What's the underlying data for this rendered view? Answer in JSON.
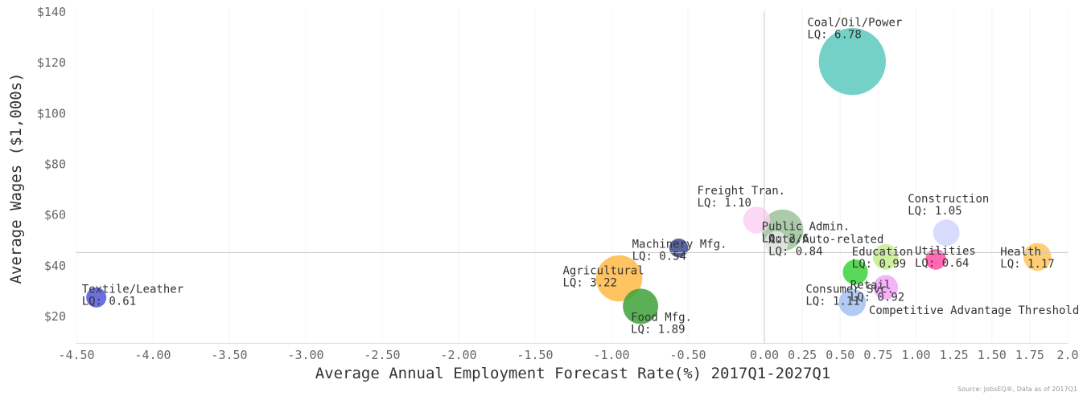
{
  "chart_data": {
    "type": "scatter",
    "xlabel": "Average Annual Employment Forecast Rate(%) 2017Q1-2027Q1",
    "ylabel": "Average Wages ($1,000s)",
    "xlim": [
      -4.5,
      2.0
    ],
    "ylim": [
      10,
      140
    ],
    "x_ticks": [
      {
        "value": -4.5,
        "label": "-4.50"
      },
      {
        "value": -4.0,
        "label": "-4.00"
      },
      {
        "value": -3.5,
        "label": "-3.50"
      },
      {
        "value": -3.0,
        "label": "-3.00"
      },
      {
        "value": -2.5,
        "label": "-2.50"
      },
      {
        "value": -2.0,
        "label": "-2.00"
      },
      {
        "value": -1.5,
        "label": "-1.50"
      },
      {
        "value": -1.0,
        "label": "-1.00"
      },
      {
        "value": -0.5,
        "label": "-0.50"
      },
      {
        "value": 0.0,
        "label": "0.00"
      },
      {
        "value": 0.25,
        "label": "0.25"
      },
      {
        "value": 0.5,
        "label": "0.50"
      },
      {
        "value": 0.75,
        "label": "0.75"
      },
      {
        "value": 1.0,
        "label": "1.00"
      },
      {
        "value": 1.25,
        "label": "1.25"
      },
      {
        "value": 1.5,
        "label": "1.50"
      },
      {
        "value": 1.75,
        "label": "1.75"
      },
      {
        "value": 2.0,
        "label": "2.0"
      }
    ],
    "y_ticks": [
      {
        "value": 20,
        "label": "$20"
      },
      {
        "value": 40,
        "label": "$40"
      },
      {
        "value": 60,
        "label": "$60"
      },
      {
        "value": 80,
        "label": "$80"
      },
      {
        "value": 100,
        "label": "$100"
      },
      {
        "value": 120,
        "label": "$120"
      },
      {
        "value": 140,
        "label": "$140"
      }
    ],
    "reference_lines": {
      "x": 0.0,
      "y": 45.2
    },
    "reference_label": "Competitive Advantage Threshold",
    "points": [
      {
        "name": "Coal/Oil/Power",
        "lq_text": "LQ: 6.78",
        "x": 0.58,
        "y": 120.5,
        "lq": 6.78,
        "color": "#5cc9bd"
      },
      {
        "name": "Freight Tran.",
        "lq_text": "LQ: 1.10",
        "x": -0.05,
        "y": 58,
        "lq": 1.1,
        "color": "#fbd0f5"
      },
      {
        "name": "Public Admin.",
        "lq_text": "LQ: 2.6",
        "x": 0.12,
        "y": 54,
        "lq": 2.6,
        "color": "#9cc29a"
      },
      {
        "name": "Auto/Auto-related",
        "lq_text": "LQ: 0.84",
        "x": 0.08,
        "y": 49,
        "lq": 0.84,
        "color": "#e7e7e7"
      },
      {
        "name": "Construction",
        "lq_text": "LQ: 1.05",
        "x": 1.2,
        "y": 53,
        "lq": 1.05,
        "color": "#d2d5fb"
      },
      {
        "name": "Machinery Mfg.",
        "lq_text": "LQ: 0.54",
        "x": -0.56,
        "y": 47,
        "lq": 0.54,
        "color": "#3c4a90"
      },
      {
        "name": "Education",
        "lq_text": "LQ: 0.99",
        "x": 0.8,
        "y": 43.5,
        "lq": 0.99,
        "color": "#c6ec8e"
      },
      {
        "name": "Utilities",
        "lq_text": "LQ: 0.64",
        "x": 1.13,
        "y": 42.5,
        "lq": 0.64,
        "color": "#ff4fa7"
      },
      {
        "name": "Health",
        "lq_text": "LQ: 1.17",
        "x": 1.8,
        "y": 43.5,
        "lq": 1.17,
        "color": "#ffc65c"
      },
      {
        "name": "Agricultural",
        "lq_text": "LQ: 3.22",
        "x": -0.95,
        "y": 35,
        "lq": 3.22,
        "color": "#ffb847"
      },
      {
        "name": "Food Mfg.",
        "lq_text": "LQ: 1.89",
        "x": -0.81,
        "y": 24,
        "lq": 1.89,
        "color": "#3ea23a"
      },
      {
        "name": "Textile/Leather",
        "lq_text": "LQ: 0.61",
        "x": -4.37,
        "y": 27.5,
        "lq": 0.61,
        "color": "#5257d8"
      },
      {
        "name": "Consumer Svc.",
        "lq_text": "LQ: 1.11",
        "x": 0.58,
        "y": 25.5,
        "lq": 1.11,
        "color": "#a6c1f3"
      },
      {
        "name": "Retail",
        "lq_text": "LQ: 0.92",
        "x": 0.8,
        "y": 31.5,
        "lq": 0.92,
        "color": "#f3a7f8"
      },
      {
        "name": "",
        "lq_text": "",
        "x": 0.6,
        "y": 37.5,
        "lq": 0.95,
        "color": "#3bd23b"
      }
    ]
  },
  "source_note": "Source: JobsEQ®, Data as of 2017Q1"
}
